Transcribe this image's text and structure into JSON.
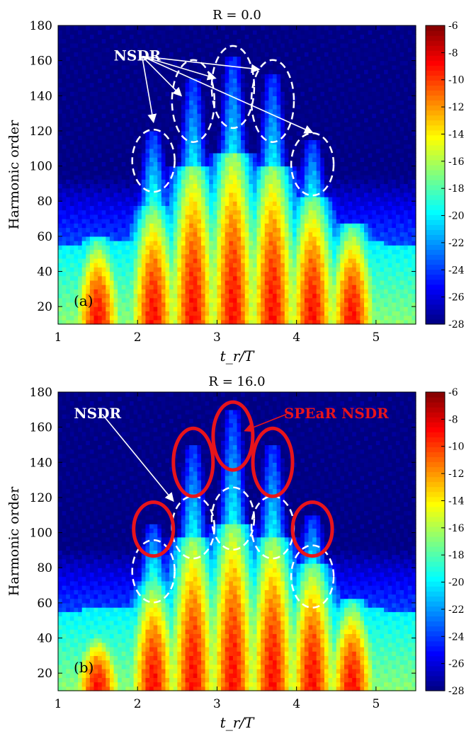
{
  "chart_data": [
    {
      "type": "heatmap",
      "title": "R = 0.0",
      "panel_label": "(a)",
      "xlabel": "t_r/T",
      "ylabel": "Harmonic order",
      "xlim": [
        1,
        5.5
      ],
      "ylim": [
        10,
        180
      ],
      "xticks": [
        1,
        2,
        3,
        4,
        5
      ],
      "yticks": [
        20,
        40,
        60,
        80,
        100,
        120,
        140,
        160,
        180
      ],
      "colorbar": {
        "range": [
          -28,
          -6
        ],
        "ticks": [
          -6,
          -8,
          -10,
          -12,
          -14,
          -16,
          -18,
          -20,
          -22,
          -24,
          -26,
          -28
        ],
        "colormap": "jet"
      },
      "lobes": [
        {
          "t": 2.2,
          "top": 120
        },
        {
          "t": 2.7,
          "top": 150
        },
        {
          "t": 3.2,
          "top": 163
        },
        {
          "t": 3.7,
          "top": 152
        },
        {
          "t": 4.2,
          "top": 115
        }
      ],
      "plateau_lobes": [
        {
          "t": 1.5,
          "top": 48
        },
        {
          "t": 2.2,
          "top": 65
        },
        {
          "t": 2.7,
          "top": 88
        },
        {
          "t": 3.2,
          "top": 95
        },
        {
          "t": 3.7,
          "top": 88
        },
        {
          "t": 4.2,
          "top": 70
        },
        {
          "t": 4.7,
          "top": 55
        }
      ],
      "annotations": [
        {
          "text": "NSDR",
          "color": "#ffffff",
          "x": 1.7,
          "y": 160,
          "points_to": [
            [
              2.2,
              125
            ],
            [
              2.55,
              140
            ],
            [
              2.98,
              150
            ],
            [
              3.53,
              155
            ],
            [
              4.2,
              119
            ]
          ]
        }
      ],
      "ellipses": [
        {
          "t": 2.2,
          "h": 103,
          "style": "white-dashed"
        },
        {
          "t": 2.7,
          "h": 137,
          "style": "white-dashed"
        },
        {
          "t": 3.2,
          "h": 145,
          "style": "white-dashed"
        },
        {
          "t": 3.7,
          "h": 137,
          "style": "white-dashed"
        },
        {
          "t": 4.2,
          "h": 101,
          "style": "white-dashed"
        }
      ]
    },
    {
      "type": "heatmap",
      "title": "R = 16.0",
      "panel_label": "(b)",
      "xlabel": "t_r/T",
      "ylabel": "Harmonic order",
      "xlim": [
        1,
        5.5
      ],
      "ylim": [
        10,
        180
      ],
      "xticks": [
        1,
        2,
        3,
        4,
        5
      ],
      "yticks": [
        20,
        40,
        60,
        80,
        100,
        120,
        140,
        160,
        180
      ],
      "colorbar": {
        "range": [
          -28,
          -6
        ],
        "ticks": [
          -6,
          -8,
          -10,
          -12,
          -14,
          -16,
          -18,
          -20,
          -22,
          -24,
          -26,
          -28
        ],
        "colormap": "jet"
      },
      "lobes": [
        {
          "t": 2.2,
          "top": 105
        },
        {
          "t": 2.7,
          "top": 150
        },
        {
          "t": 3.2,
          "top": 170
        },
        {
          "t": 3.7,
          "top": 150
        },
        {
          "t": 4.2,
          "top": 110
        }
      ],
      "plateau_lobes": [
        {
          "t": 1.5,
          "top": 35
        },
        {
          "t": 2.2,
          "top": 60
        },
        {
          "t": 2.7,
          "top": 85
        },
        {
          "t": 3.2,
          "top": 92
        },
        {
          "t": 3.7,
          "top": 85
        },
        {
          "t": 4.2,
          "top": 70
        },
        {
          "t": 4.7,
          "top": 50
        }
      ],
      "annotations": [
        {
          "text": "NSDR",
          "color": "#ffffff",
          "x": 1.2,
          "y": 165,
          "points_to": [
            [
              2.45,
              118
            ]
          ]
        },
        {
          "text": "SPEaR NSDR",
          "color": "#e8141b",
          "x": 4.5,
          "y": 165,
          "points_to": [
            [
              3.35,
              158
            ]
          ]
        }
      ],
      "ellipses": [
        {
          "t": 2.2,
          "h": 78,
          "style": "white-dashed"
        },
        {
          "t": 2.7,
          "h": 103,
          "style": "white-dashed"
        },
        {
          "t": 3.2,
          "h": 108,
          "style": "white-dashed"
        },
        {
          "t": 3.7,
          "h": 103,
          "style": "white-dashed"
        },
        {
          "t": 4.2,
          "h": 75,
          "style": "white-dashed"
        },
        {
          "t": 2.2,
          "h": 102,
          "style": "red"
        },
        {
          "t": 2.7,
          "h": 140,
          "style": "red"
        },
        {
          "t": 3.2,
          "h": 155,
          "style": "red"
        },
        {
          "t": 3.7,
          "h": 140,
          "style": "red"
        },
        {
          "t": 4.2,
          "h": 102,
          "style": "red"
        }
      ]
    }
  ]
}
